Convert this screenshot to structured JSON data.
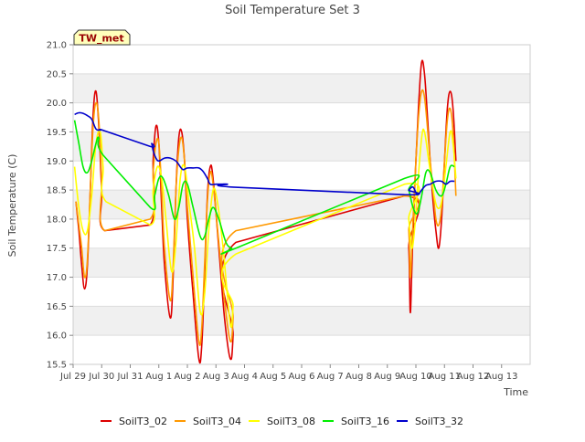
{
  "chart_data": {
    "type": "line",
    "title": "Soil Temperature Set 3",
    "xlabel": "Time",
    "ylabel": "Soil Temperature (C)",
    "site_label": "TW_met",
    "xlim": [
      0,
      16
    ],
    "ylim": [
      15.5,
      21.0
    ],
    "x_ticks": [
      {
        "x": 0,
        "label": "Jul 29"
      },
      {
        "x": 1,
        "label": "Jul 30"
      },
      {
        "x": 2,
        "label": "Jul 31"
      },
      {
        "x": 3,
        "label": "Aug 1"
      },
      {
        "x": 4,
        "label": "Aug 2"
      },
      {
        "x": 5,
        "label": "Aug 3"
      },
      {
        "x": 6,
        "label": "Aug 4"
      },
      {
        "x": 7,
        "label": "Aug 5"
      },
      {
        "x": 8,
        "label": "Aug 6"
      },
      {
        "x": 9,
        "label": "Aug 7"
      },
      {
        "x": 10,
        "label": "Aug 8"
      },
      {
        "x": 11,
        "label": "Aug 9"
      },
      {
        "x": 12,
        "label": "Aug 10"
      },
      {
        "x": 13,
        "label": "Aug 11"
      },
      {
        "x": 14,
        "label": "Aug 12"
      },
      {
        "x": 15,
        "label": "Aug 13"
      }
    ],
    "y_ticks": [
      "15.5",
      "16.0",
      "16.5",
      "17.0",
      "17.5",
      "18.0",
      "18.5",
      "19.0",
      "19.5",
      "20.0",
      "20.5",
      "21.0"
    ],
    "legend": "bottom-center",
    "series": [
      {
        "name": "SoilT3_02",
        "color": "#dd0000",
        "points": [
          [
            0.1,
            18.3
          ],
          [
            0.2,
            17.8
          ],
          [
            0.3,
            17.2
          ],
          [
            0.4,
            16.8
          ],
          [
            0.5,
            17.2
          ],
          [
            0.6,
            18.5
          ],
          [
            0.7,
            19.8
          ],
          [
            0.8,
            20.2
          ],
          [
            0.9,
            19.6
          ],
          [
            1.0,
            18.5
          ],
          [
            1.1,
            17.8
          ],
          [
            2.7,
            17.9
          ],
          [
            2.8,
            19.0
          ],
          [
            2.9,
            19.6
          ],
          [
            3.0,
            19.3
          ],
          [
            3.1,
            18.2
          ],
          [
            3.2,
            17.2
          ],
          [
            3.4,
            16.3
          ],
          [
            3.5,
            17.0
          ],
          [
            3.6,
            18.5
          ],
          [
            3.7,
            19.4
          ],
          [
            3.8,
            19.5
          ],
          [
            3.9,
            19.0
          ],
          [
            4.0,
            18.0
          ],
          [
            4.2,
            16.7
          ],
          [
            4.4,
            15.6
          ],
          [
            4.5,
            15.8
          ],
          [
            4.6,
            17.0
          ],
          [
            4.7,
            18.4
          ],
          [
            4.8,
            18.9
          ],
          [
            4.9,
            18.7
          ],
          [
            5.1,
            17.5
          ],
          [
            5.3,
            16.3
          ],
          [
            5.5,
            15.6
          ],
          [
            5.6,
            16.0
          ],
          [
            5.7,
            17.6
          ],
          [
            11.6,
            18.4
          ],
          [
            11.75,
            17.5
          ],
          [
            11.8,
            16.4
          ],
          [
            11.85,
            17.0
          ],
          [
            11.9,
            17.8
          ],
          [
            12.0,
            19.0
          ],
          [
            12.1,
            20.0
          ],
          [
            12.2,
            20.7
          ],
          [
            12.3,
            20.5
          ],
          [
            12.4,
            19.8
          ],
          [
            12.5,
            19.0
          ],
          [
            12.6,
            18.3
          ],
          [
            12.7,
            17.8
          ],
          [
            12.8,
            17.5
          ],
          [
            12.9,
            18.0
          ],
          [
            13.0,
            19.0
          ],
          [
            13.1,
            19.9
          ],
          [
            13.2,
            20.2
          ],
          [
            13.3,
            19.9
          ],
          [
            13.4,
            19.0
          ]
        ]
      },
      {
        "name": "SoilT3_04",
        "color": "#ff9900",
        "points": [
          [
            0.1,
            18.3
          ],
          [
            0.2,
            17.9
          ],
          [
            0.3,
            17.5
          ],
          [
            0.4,
            17.0
          ],
          [
            0.5,
            17.3
          ],
          [
            0.6,
            18.5
          ],
          [
            0.7,
            19.6
          ],
          [
            0.8,
            20.0
          ],
          [
            0.9,
            19.7
          ],
          [
            1.0,
            18.7
          ],
          [
            1.1,
            17.8
          ],
          [
            2.7,
            18.0
          ],
          [
            2.8,
            18.8
          ],
          [
            2.9,
            19.3
          ],
          [
            3.0,
            19.3
          ],
          [
            3.1,
            18.5
          ],
          [
            3.2,
            17.5
          ],
          [
            3.4,
            16.6
          ],
          [
            3.5,
            17.2
          ],
          [
            3.6,
            18.5
          ],
          [
            3.7,
            19.2
          ],
          [
            3.8,
            19.4
          ],
          [
            3.9,
            19.0
          ],
          [
            4.0,
            18.2
          ],
          [
            4.2,
            17.0
          ],
          [
            4.4,
            15.9
          ],
          [
            4.5,
            16.1
          ],
          [
            4.6,
            17.2
          ],
          [
            4.7,
            18.3
          ],
          [
            4.8,
            18.8
          ],
          [
            4.9,
            18.6
          ],
          [
            5.1,
            17.6
          ],
          [
            5.3,
            16.6
          ],
          [
            5.5,
            15.9
          ],
          [
            5.6,
            16.3
          ],
          [
            5.7,
            17.8
          ],
          [
            11.6,
            18.4
          ],
          [
            11.75,
            17.8
          ],
          [
            11.8,
            17.0
          ],
          [
            11.85,
            17.4
          ],
          [
            11.9,
            18.0
          ],
          [
            12.0,
            19.0
          ],
          [
            12.1,
            19.8
          ],
          [
            12.2,
            20.2
          ],
          [
            12.3,
            20.1
          ],
          [
            12.4,
            19.6
          ],
          [
            12.5,
            19.0
          ],
          [
            12.6,
            18.5
          ],
          [
            12.7,
            18.0
          ],
          [
            12.8,
            17.9
          ],
          [
            12.9,
            18.2
          ],
          [
            13.0,
            19.0
          ],
          [
            13.1,
            19.7
          ],
          [
            13.2,
            19.9
          ],
          [
            13.3,
            19.5
          ],
          [
            13.4,
            18.4
          ]
        ]
      },
      {
        "name": "SoilT3_08",
        "color": "#ffff00",
        "points": [
          [
            0.05,
            18.9
          ],
          [
            0.2,
            18.2
          ],
          [
            0.35,
            17.8
          ],
          [
            0.5,
            17.8
          ],
          [
            0.65,
            18.4
          ],
          [
            0.8,
            19.3
          ],
          [
            0.95,
            19.5
          ],
          [
            1.05,
            18.9
          ],
          [
            1.15,
            18.3
          ],
          [
            2.7,
            17.9
          ],
          [
            2.8,
            18.5
          ],
          [
            2.95,
            18.9
          ],
          [
            3.1,
            18.7
          ],
          [
            3.25,
            18.0
          ],
          [
            3.45,
            17.1
          ],
          [
            3.6,
            17.6
          ],
          [
            3.75,
            18.7
          ],
          [
            3.9,
            18.9
          ],
          [
            4.05,
            18.3
          ],
          [
            4.25,
            17.5
          ],
          [
            4.45,
            16.4
          ],
          [
            4.6,
            16.7
          ],
          [
            4.75,
            17.8
          ],
          [
            4.9,
            18.5
          ],
          [
            5.05,
            18.3
          ],
          [
            5.25,
            17.5
          ],
          [
            5.5,
            16.2
          ],
          [
            5.6,
            16.5
          ],
          [
            5.7,
            17.4
          ],
          [
            11.6,
            18.6
          ],
          [
            11.75,
            18.0
          ],
          [
            11.85,
            17.5
          ],
          [
            11.95,
            17.8
          ],
          [
            12.05,
            18.5
          ],
          [
            12.2,
            19.4
          ],
          [
            12.3,
            19.5
          ],
          [
            12.45,
            19.0
          ],
          [
            12.6,
            18.5
          ],
          [
            12.75,
            18.2
          ],
          [
            12.9,
            18.3
          ],
          [
            13.05,
            18.9
          ],
          [
            13.2,
            19.5
          ],
          [
            13.3,
            19.3
          ],
          [
            13.4,
            18.7
          ]
        ]
      },
      {
        "name": "SoilT3_16",
        "color": "#00ee00",
        "points": [
          [
            0.05,
            19.7
          ],
          [
            0.2,
            19.3
          ],
          [
            0.35,
            18.9
          ],
          [
            0.5,
            18.8
          ],
          [
            0.65,
            19.0
          ],
          [
            0.8,
            19.3
          ],
          [
            0.9,
            19.4
          ],
          [
            1.05,
            19.1
          ],
          [
            2.7,
            18.2
          ],
          [
            2.85,
            18.4
          ],
          [
            3.0,
            18.7
          ],
          [
            3.15,
            18.7
          ],
          [
            3.35,
            18.4
          ],
          [
            3.55,
            18.0
          ],
          [
            3.7,
            18.2
          ],
          [
            3.85,
            18.6
          ],
          [
            4.0,
            18.6
          ],
          [
            4.2,
            18.2
          ],
          [
            4.45,
            17.7
          ],
          [
            4.6,
            17.7
          ],
          [
            4.75,
            18.0
          ],
          [
            4.9,
            18.2
          ],
          [
            5.1,
            18.0
          ],
          [
            5.35,
            17.6
          ],
          [
            5.55,
            17.5
          ],
          [
            5.7,
            17.5
          ],
          [
            11.6,
            18.7
          ],
          [
            11.75,
            18.5
          ],
          [
            11.9,
            18.2
          ],
          [
            12.05,
            18.1
          ],
          [
            12.2,
            18.4
          ],
          [
            12.35,
            18.8
          ],
          [
            12.5,
            18.8
          ],
          [
            12.7,
            18.5
          ],
          [
            12.9,
            18.4
          ],
          [
            13.05,
            18.6
          ],
          [
            13.2,
            18.9
          ],
          [
            13.35,
            18.9
          ]
        ]
      },
      {
        "name": "SoilT3_32",
        "color": "#0000cc",
        "points": [
          [
            0.05,
            19.8
          ],
          [
            0.2,
            19.83
          ],
          [
            0.35,
            19.82
          ],
          [
            0.5,
            19.78
          ],
          [
            0.65,
            19.72
          ],
          [
            0.8,
            19.55
          ],
          [
            0.95,
            19.53
          ],
          [
            1.1,
            19.52
          ],
          [
            2.7,
            19.25
          ],
          [
            2.75,
            19.3
          ],
          [
            2.8,
            19.18
          ],
          [
            2.9,
            19.05
          ],
          [
            3.0,
            19.0
          ],
          [
            3.2,
            19.05
          ],
          [
            3.4,
            19.05
          ],
          [
            3.6,
            19.0
          ],
          [
            3.75,
            18.9
          ],
          [
            3.85,
            18.85
          ],
          [
            4.0,
            18.88
          ],
          [
            4.2,
            18.88
          ],
          [
            4.4,
            18.88
          ],
          [
            4.55,
            18.82
          ],
          [
            4.7,
            18.7
          ],
          [
            4.8,
            18.6
          ],
          [
            5.0,
            18.6
          ],
          [
            5.2,
            18.6
          ],
          [
            5.4,
            18.6
          ],
          [
            5.6,
            18.55
          ],
          [
            11.6,
            18.42
          ],
          [
            11.75,
            18.5
          ],
          [
            11.9,
            18.55
          ],
          [
            12.05,
            18.42
          ],
          [
            12.2,
            18.5
          ],
          [
            12.35,
            18.58
          ],
          [
            12.5,
            18.6
          ],
          [
            12.7,
            18.65
          ],
          [
            12.9,
            18.65
          ],
          [
            13.05,
            18.6
          ],
          [
            13.2,
            18.65
          ],
          [
            13.35,
            18.65
          ]
        ]
      }
    ]
  }
}
